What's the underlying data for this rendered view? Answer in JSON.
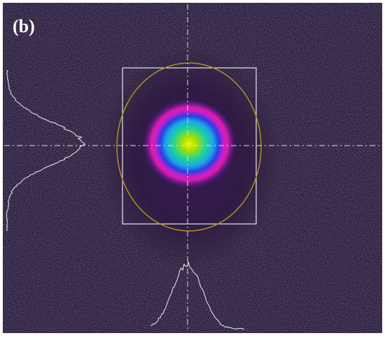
{
  "label": "(b)"
}
